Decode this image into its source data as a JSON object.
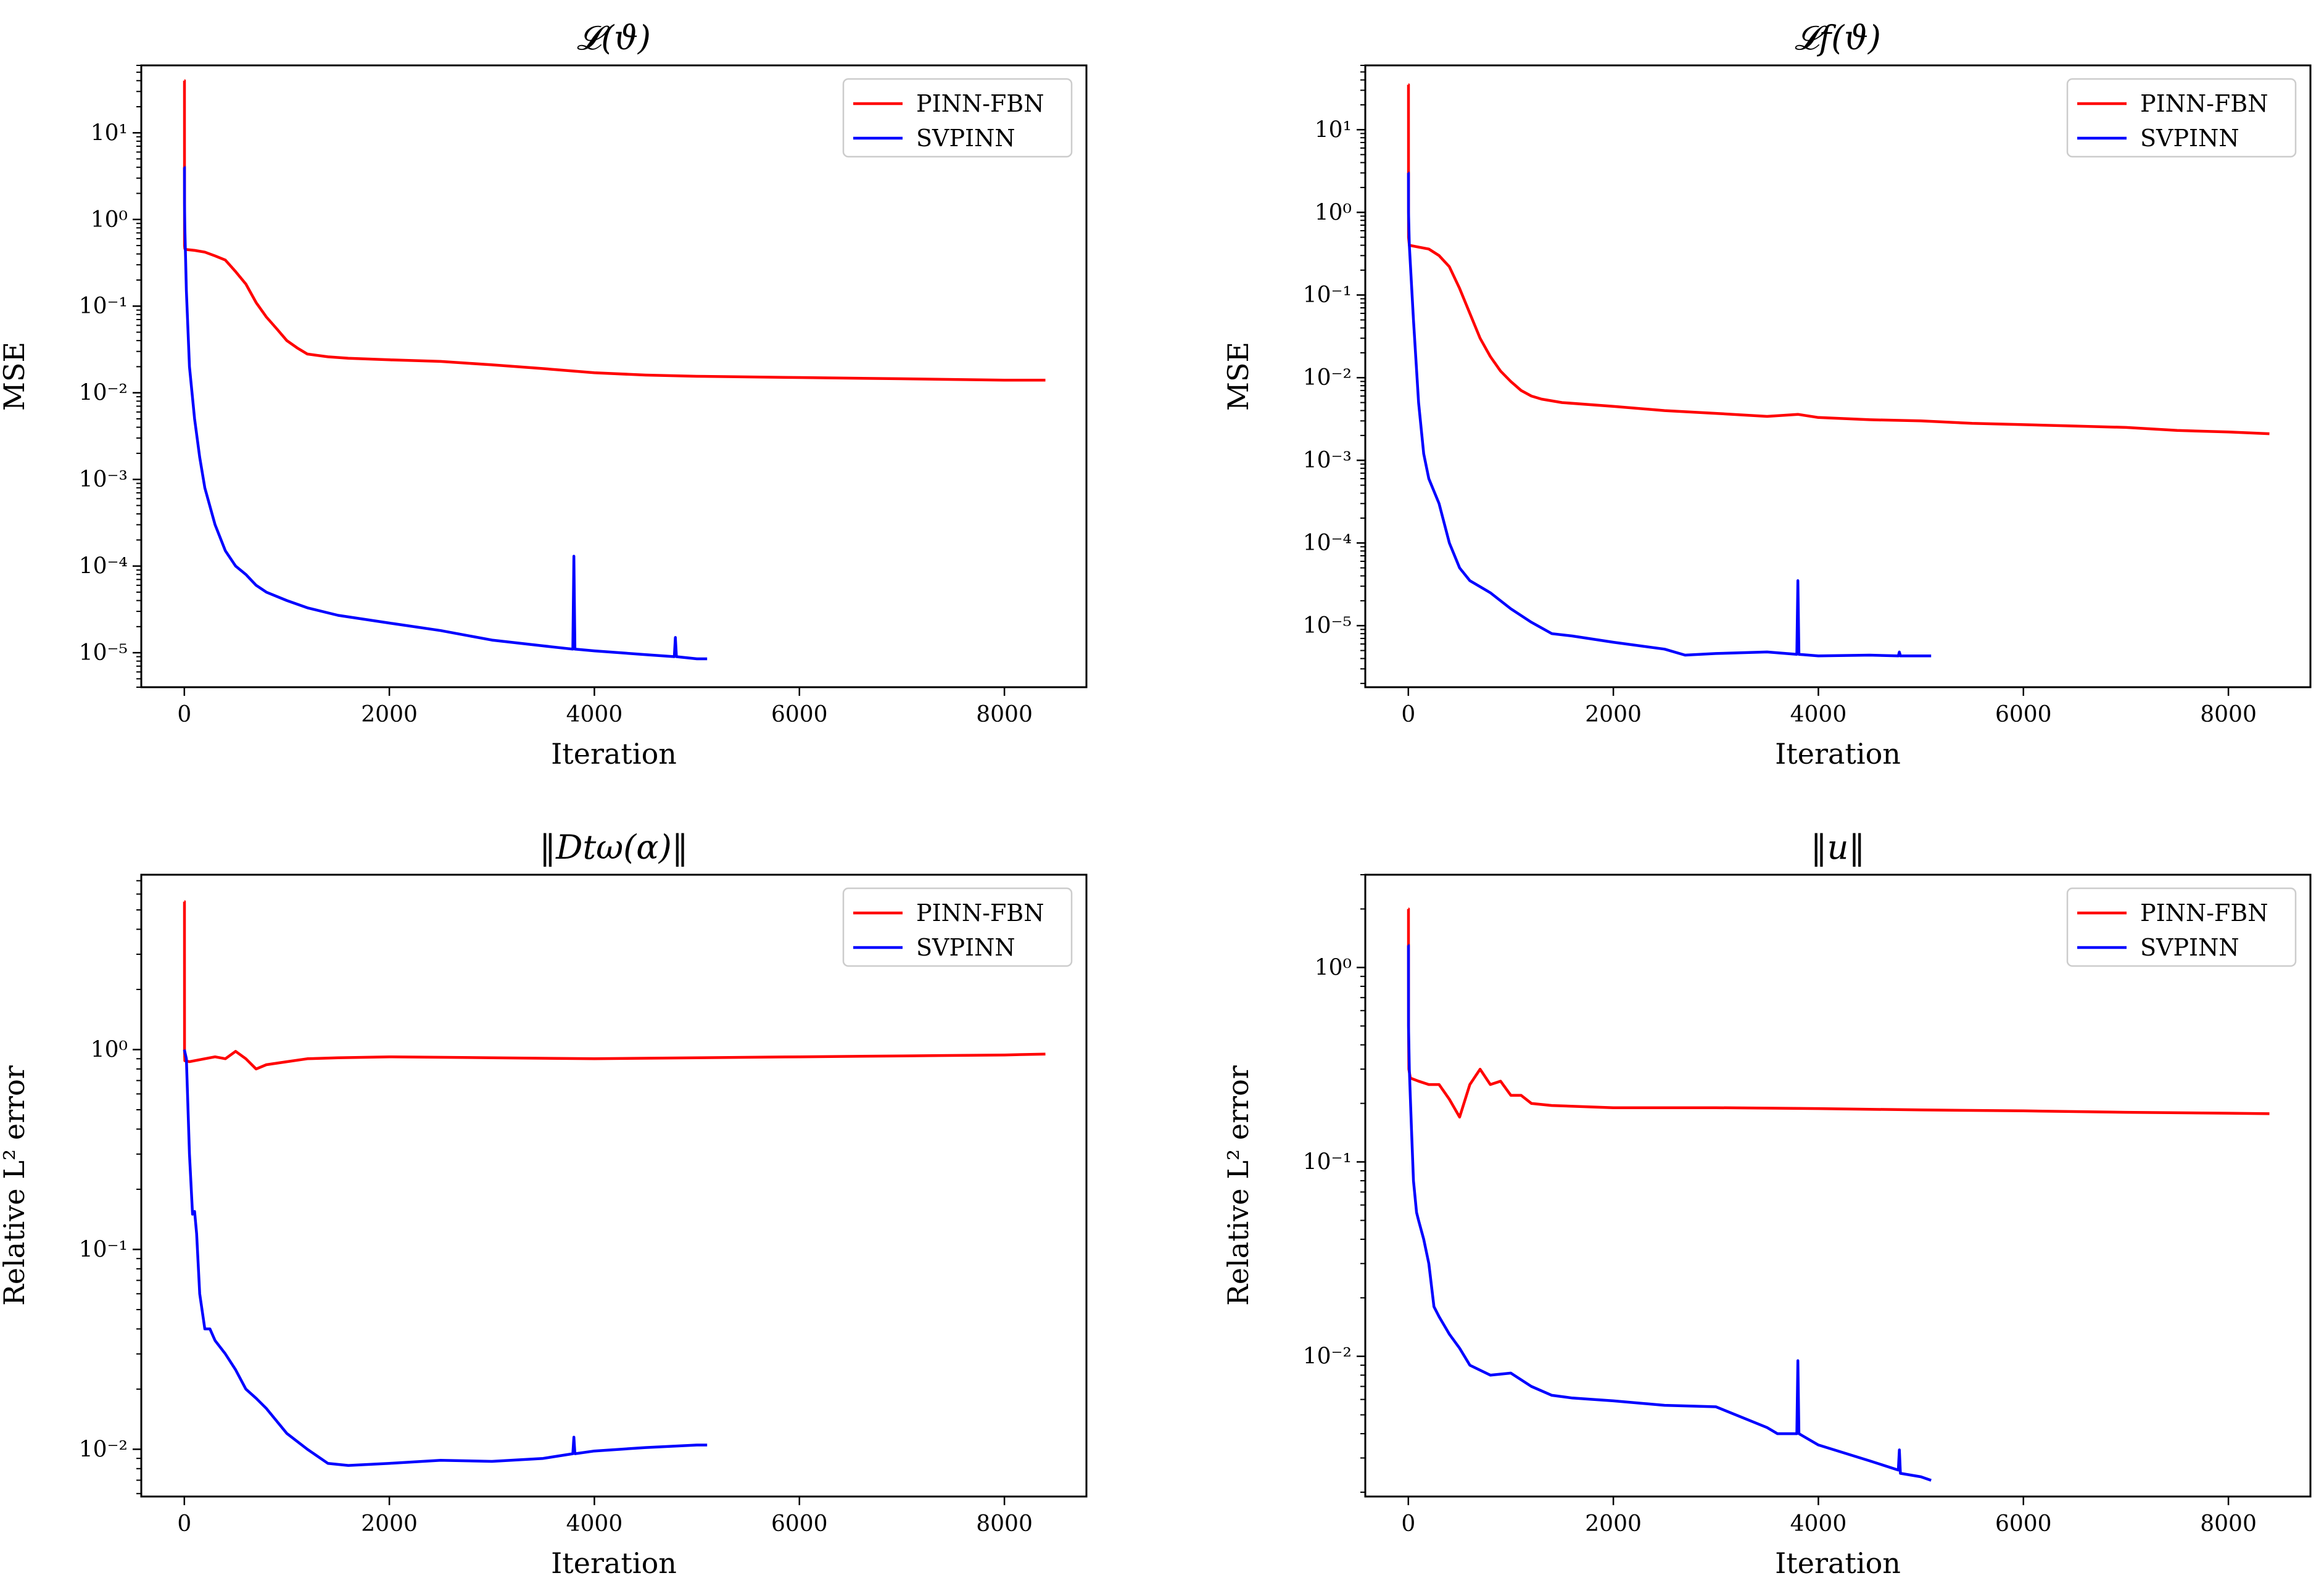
{
  "colors": {
    "pinn_fbn": "#ff0000",
    "svpinn": "#0000ff",
    "axes": "#000000",
    "legend_border": "#cccccc"
  },
  "chart_data": [
    {
      "type": "line",
      "title": "𝓛(ϑ)",
      "xlabel": "Iteration",
      "ylabel": "MSE",
      "yscale": "log",
      "xlim": [
        -420,
        8800
      ],
      "ylim": [
        4e-06,
        60
      ],
      "xticks": [
        0,
        2000,
        4000,
        6000,
        8000
      ],
      "xtick_labels": [
        "0",
        "2000",
        "4000",
        "6000",
        "8000"
      ],
      "yticks": [
        1e-05,
        0.0001,
        0.001,
        0.01,
        0.1,
        1.0,
        10.0
      ],
      "ytick_labels": [
        "10⁻⁵",
        "10⁻⁴",
        "10⁻³",
        "10⁻²",
        "10⁻¹",
        "10⁰",
        "10¹"
      ],
      "legend": [
        "PINN-FBN",
        "SVPINN"
      ],
      "legend_loc": "upper right",
      "series": [
        {
          "name": "PINN-FBN",
          "color": "#ff0000",
          "x": [
            0,
            1,
            2,
            5,
            20,
            100,
            200,
            300,
            400,
            500,
            600,
            700,
            800,
            900,
            1000,
            1100,
            1200,
            1400,
            1600,
            2000,
            2500,
            3000,
            3500,
            4000,
            4500,
            5000,
            6000,
            7000,
            8000,
            8400
          ],
          "y": [
            40,
            40,
            0.5,
            0.46,
            0.45,
            0.44,
            0.42,
            0.38,
            0.34,
            0.25,
            0.18,
            0.11,
            0.075,
            0.055,
            0.04,
            0.033,
            0.028,
            0.026,
            0.025,
            0.024,
            0.023,
            0.021,
            0.019,
            0.017,
            0.016,
            0.0155,
            0.015,
            0.0145,
            0.014,
            0.014
          ]
        },
        {
          "name": "SVPINN",
          "color": "#0000ff",
          "x": [
            0,
            1,
            2,
            5,
            20,
            50,
            100,
            150,
            200,
            300,
            400,
            500,
            600,
            700,
            800,
            1000,
            1200,
            1500,
            2000,
            2500,
            3000,
            3500,
            3790,
            3800,
            3810,
            4000,
            4500,
            4780,
            4790,
            4800,
            5000,
            5100
          ],
          "y": [
            4,
            4,
            1.5,
            0.8,
            0.15,
            0.02,
            0.005,
            0.0018,
            0.0008,
            0.0003,
            0.00015,
            0.0001,
            8e-05,
            6e-05,
            5e-05,
            4e-05,
            3.3e-05,
            2.7e-05,
            2.2e-05,
            1.8e-05,
            1.4e-05,
            1.2e-05,
            1.1e-05,
            0.00013,
            1.1e-05,
            1.05e-05,
            9.5e-06,
            9e-06,
            1.5e-05,
            9e-06,
            8.5e-06,
            8.5e-06
          ]
        }
      ]
    },
    {
      "type": "line",
      "title": "𝓛f(ϑ)",
      "xlabel": "Iteration",
      "ylabel": "MSE",
      "yscale": "log",
      "xlim": [
        -420,
        8800
      ],
      "ylim": [
        1.8e-06,
        60
      ],
      "xticks": [
        0,
        2000,
        4000,
        6000,
        8000
      ],
      "xtick_labels": [
        "0",
        "2000",
        "4000",
        "6000",
        "8000"
      ],
      "yticks": [
        1e-05,
        0.0001,
        0.001,
        0.01,
        0.1,
        1.0,
        10.0
      ],
      "ytick_labels": [
        "10⁻⁵",
        "10⁻⁴",
        "10⁻³",
        "10⁻²",
        "10⁻¹",
        "10⁰",
        "10¹"
      ],
      "legend": [
        "PINN-FBN",
        "SVPINN"
      ],
      "legend_loc": "upper right",
      "series": [
        {
          "name": "PINN-FBN",
          "color": "#ff0000",
          "x": [
            0,
            1,
            2,
            10,
            100,
            200,
            300,
            400,
            500,
            600,
            700,
            800,
            900,
            1000,
            1100,
            1200,
            1300,
            1500,
            2000,
            2500,
            3000,
            3500,
            3800,
            4000,
            4500,
            5000,
            5500,
            6000,
            6500,
            7000,
            7500,
            8000,
            8400
          ],
          "y": [
            35,
            35,
            0.5,
            0.4,
            0.38,
            0.36,
            0.3,
            0.22,
            0.12,
            0.06,
            0.03,
            0.018,
            0.012,
            0.009,
            0.007,
            0.006,
            0.0055,
            0.005,
            0.0045,
            0.004,
            0.0037,
            0.0034,
            0.0036,
            0.0033,
            0.0031,
            0.003,
            0.0028,
            0.0027,
            0.0026,
            0.0025,
            0.0023,
            0.0022,
            0.0021
          ]
        },
        {
          "name": "SVPINN",
          "color": "#0000ff",
          "x": [
            0,
            1,
            2,
            10,
            50,
            100,
            150,
            200,
            300,
            400,
            500,
            600,
            800,
            1000,
            1200,
            1400,
            1600,
            2000,
            2500,
            2700,
            3000,
            3500,
            3790,
            3800,
            3810,
            4000,
            4500,
            4780,
            4790,
            4800,
            5100
          ],
          "y": [
            3,
            3,
            1,
            0.4,
            0.05,
            0.005,
            0.0012,
            0.0006,
            0.0003,
            0.0001,
            5e-05,
            3.5e-05,
            2.5e-05,
            1.6e-05,
            1.1e-05,
            8e-06,
            7.5e-06,
            6.3e-06,
            5.2e-06,
            4.4e-06,
            4.6e-06,
            4.8e-06,
            4.5e-06,
            3.5e-05,
            4.5e-06,
            4.3e-06,
            4.4e-06,
            4.3e-06,
            4.8e-06,
            4.3e-06,
            4.3e-06
          ]
        }
      ]
    },
    {
      "type": "line",
      "title": "‖Dtω(α)‖",
      "xlabel": "Iteration",
      "ylabel": "Relative L² error",
      "yscale": "log",
      "xlim": [
        -420,
        8800
      ],
      "ylim": [
        0.0058,
        7.5
      ],
      "xticks": [
        0,
        2000,
        4000,
        6000,
        8000
      ],
      "xtick_labels": [
        "0",
        "2000",
        "4000",
        "6000",
        "8000"
      ],
      "yticks": [
        0.01,
        0.1,
        1
      ],
      "ytick_labels": [
        "10⁻²",
        "10⁻¹",
        "10⁰"
      ],
      "legend": [
        "PINN-FBN",
        "SVPINN"
      ],
      "legend_loc": "upper right",
      "series": [
        {
          "name": "PINN-FBN",
          "color": "#ff0000",
          "x": [
            0,
            1,
            2,
            5,
            50,
            200,
            300,
            400,
            500,
            600,
            700,
            800,
            1000,
            1200,
            1500,
            2000,
            3000,
            4000,
            5000,
            6000,
            7000,
            8000,
            8400
          ],
          "y": [
            5.5,
            5.5,
            1.0,
            0.88,
            0.87,
            0.9,
            0.92,
            0.9,
            0.98,
            0.9,
            0.8,
            0.84,
            0.87,
            0.9,
            0.91,
            0.92,
            0.91,
            0.9,
            0.91,
            0.92,
            0.93,
            0.94,
            0.95
          ]
        },
        {
          "name": "SVPINN",
          "color": "#0000ff",
          "x": [
            0,
            20,
            50,
            80,
            100,
            120,
            150,
            200,
            250,
            300,
            400,
            500,
            600,
            700,
            800,
            1000,
            1200,
            1400,
            1600,
            2000,
            2500,
            3000,
            3500,
            3790,
            3800,
            3810,
            4000,
            4500,
            5000,
            5100
          ],
          "y": [
            1.0,
            0.9,
            0.3,
            0.15,
            0.155,
            0.12,
            0.06,
            0.04,
            0.04,
            0.035,
            0.03,
            0.025,
            0.02,
            0.018,
            0.016,
            0.012,
            0.01,
            0.0085,
            0.0083,
            0.0085,
            0.0088,
            0.0087,
            0.009,
            0.0095,
            0.0115,
            0.0095,
            0.0098,
            0.0102,
            0.0105,
            0.0105
          ]
        }
      ]
    },
    {
      "type": "line",
      "title": "‖u‖",
      "xlabel": "Iteration",
      "ylabel": "Relative L² error",
      "yscale": "log",
      "xlim": [
        -420,
        8800
      ],
      "ylim": [
        0.0019,
        3.0
      ],
      "xticks": [
        0,
        2000,
        4000,
        6000,
        8000
      ],
      "xtick_labels": [
        "0",
        "2000",
        "4000",
        "6000",
        "8000"
      ],
      "yticks": [
        0.01,
        0.1,
        1
      ],
      "ytick_labels": [
        "10⁻²",
        "10⁻¹",
        "10⁰"
      ],
      "legend": [
        "PINN-FBN",
        "SVPINN"
      ],
      "legend_loc": "upper right",
      "series": [
        {
          "name": "PINN-FBN",
          "color": "#ff0000",
          "x": [
            0,
            1,
            2,
            5,
            20,
            100,
            200,
            300,
            400,
            500,
            600,
            700,
            800,
            900,
            1000,
            1100,
            1200,
            1400,
            2000,
            3000,
            4000,
            5000,
            6000,
            7000,
            8000,
            8400
          ],
          "y": [
            2.0,
            2.0,
            0.5,
            0.3,
            0.27,
            0.26,
            0.25,
            0.25,
            0.21,
            0.17,
            0.25,
            0.3,
            0.25,
            0.26,
            0.22,
            0.22,
            0.2,
            0.195,
            0.19,
            0.19,
            0.188,
            0.185,
            0.183,
            0.18,
            0.178,
            0.177
          ]
        },
        {
          "name": "SVPINN",
          "color": "#0000ff",
          "x": [
            0,
            1,
            2,
            10,
            30,
            50,
            80,
            100,
            150,
            200,
            250,
            300,
            400,
            500,
            600,
            800,
            1000,
            1200,
            1400,
            1600,
            2000,
            2500,
            3000,
            3500,
            3600,
            3790,
            3800,
            3810,
            4000,
            4500,
            4780,
            4790,
            4800,
            5000,
            5100
          ],
          "y": [
            1.3,
            1.3,
            0.5,
            0.3,
            0.15,
            0.08,
            0.055,
            0.05,
            0.04,
            0.03,
            0.018,
            0.016,
            0.013,
            0.011,
            0.009,
            0.008,
            0.0082,
            0.007,
            0.0063,
            0.0061,
            0.0059,
            0.0056,
            0.0055,
            0.0043,
            0.004,
            0.004,
            0.0095,
            0.004,
            0.0035,
            0.0029,
            0.0026,
            0.0033,
            0.0025,
            0.0024,
            0.0023
          ]
        }
      ]
    }
  ]
}
